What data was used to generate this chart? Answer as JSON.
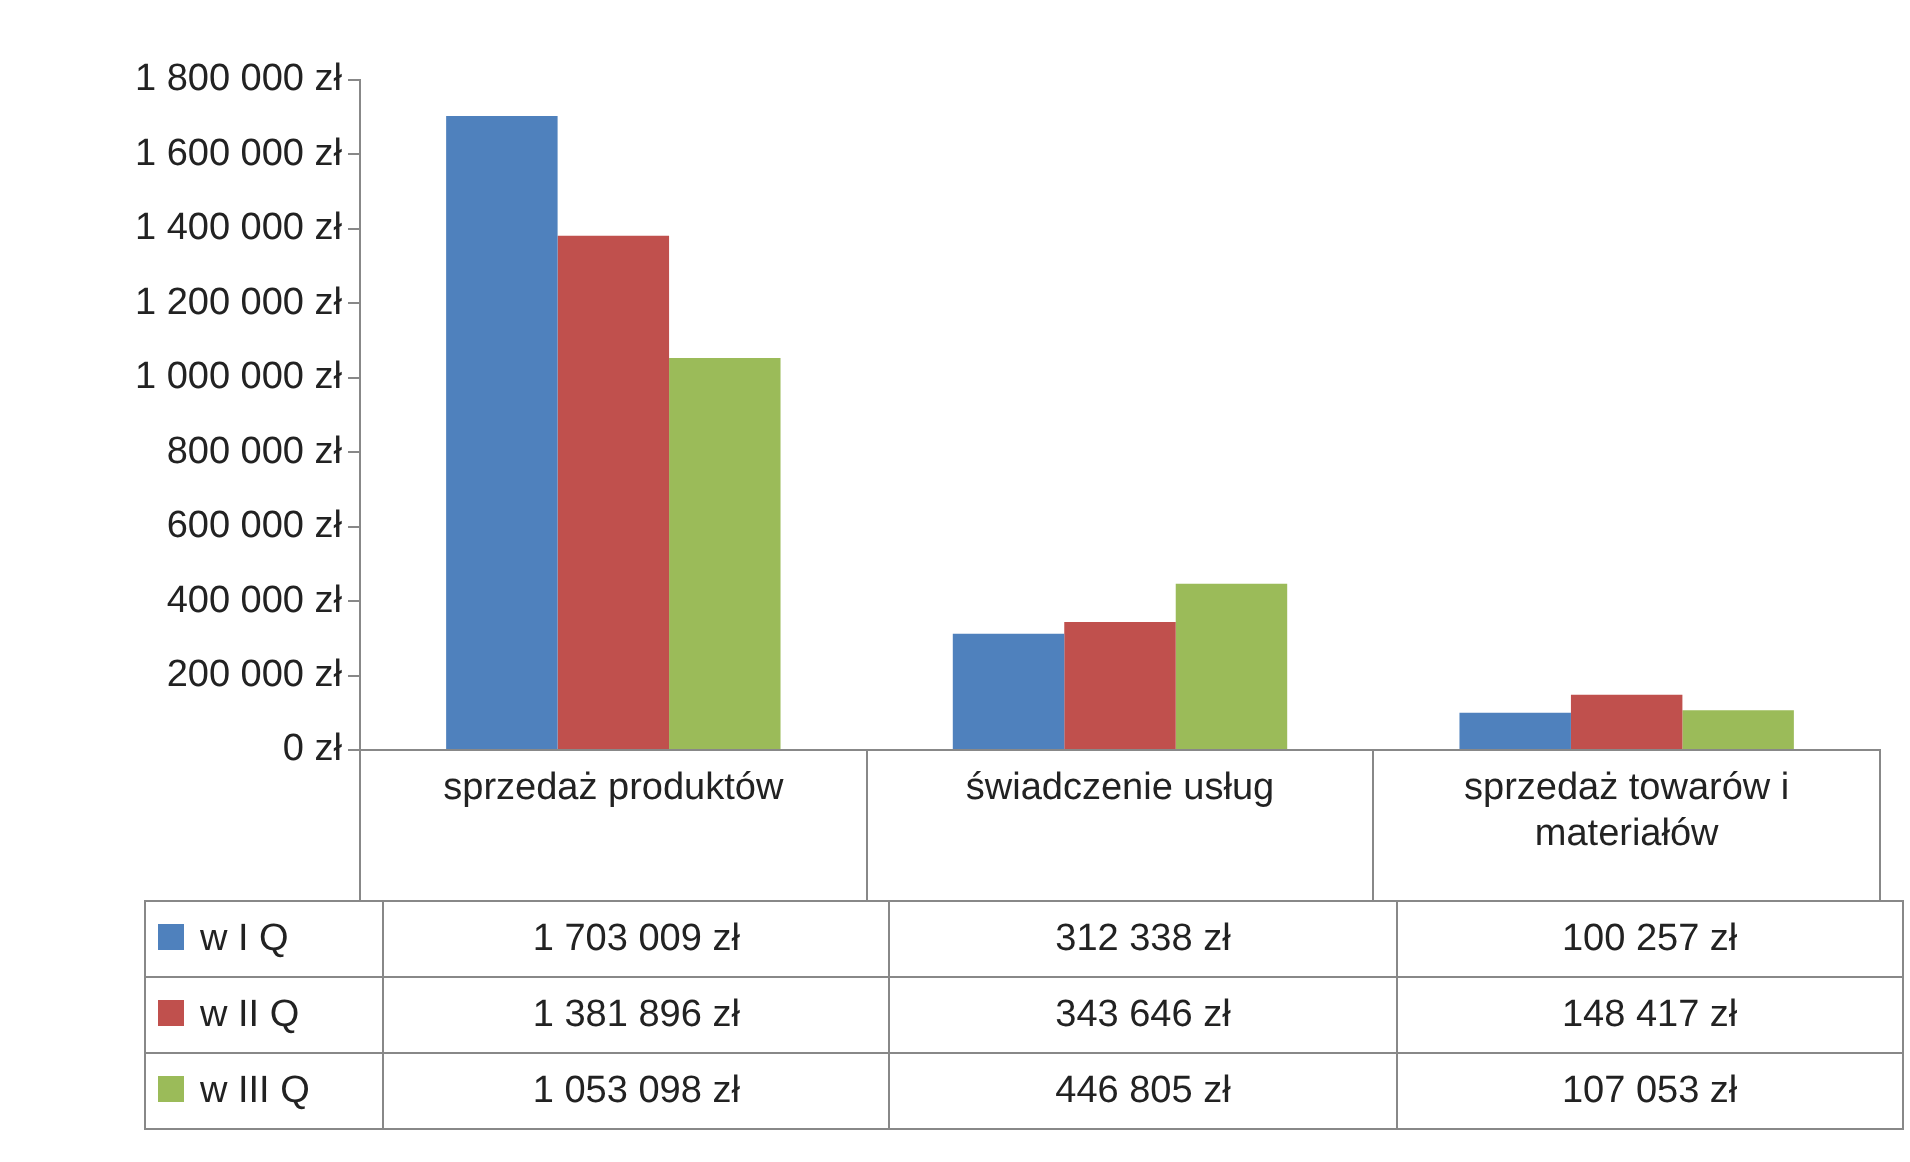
{
  "chart_data": {
    "type": "bar",
    "categories": [
      "sprzedaż produktów",
      "świadczenie usług",
      "sprzedaż towarów i materiałów"
    ],
    "series": [
      {
        "name": "w I Q",
        "color": "#4f81bd",
        "values": [
          1703009,
          312338,
          100257
        ],
        "value_labels": [
          "1 703 009 zł",
          "312 338 zł",
          "100 257 zł"
        ]
      },
      {
        "name": "w II Q",
        "color": "#c0504d",
        "values": [
          1381896,
          343646,
          148417
        ],
        "value_labels": [
          "1 381 896 zł",
          "343 646 zł",
          "148 417 zł"
        ]
      },
      {
        "name": "w III Q",
        "color": "#9bbb59",
        "values": [
          1053098,
          446805,
          107053
        ],
        "value_labels": [
          "1 053 098 zł",
          "446 805 zł",
          "107 053 zł"
        ]
      }
    ],
    "ylim": [
      0,
      1800000
    ],
    "yticks": [
      {
        "value": 0,
        "label": "0 zł"
      },
      {
        "value": 200000,
        "label": "200 000 zł"
      },
      {
        "value": 400000,
        "label": "400 000 zł"
      },
      {
        "value": 600000,
        "label": "600 000 zł"
      },
      {
        "value": 800000,
        "label": "800 000 zł"
      },
      {
        "value": 1000000,
        "label": "1 000 000 zł"
      },
      {
        "value": 1200000,
        "label": "1 200 000 zł"
      },
      {
        "value": 1400000,
        "label": "1 400 000 zł"
      },
      {
        "value": 1600000,
        "label": "1 600 000 zł"
      },
      {
        "value": 1800000,
        "label": "1 800 000 zł"
      }
    ],
    "grid": false,
    "legend": "bottom"
  }
}
